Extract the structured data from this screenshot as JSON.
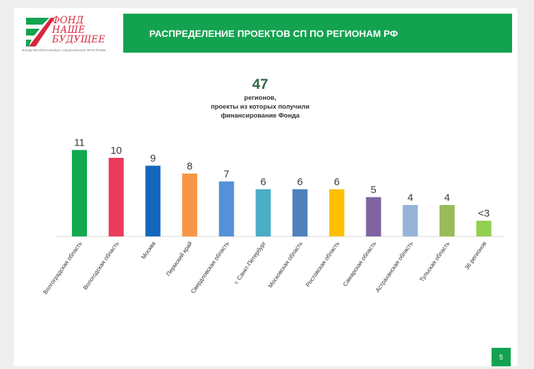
{
  "logo": {
    "lines": [
      "ФОНД",
      "НАШЕ",
      "БУДУЩЕЕ"
    ],
    "subtitle": "ФОНД РЕГИОНАЛЬНЫХ СОЦИАЛЬНЫХ ПРОГРАММ",
    "colors": {
      "green": "#13a350",
      "red": "#d7263d"
    }
  },
  "header": {
    "title": "РАСПРЕДЕЛЕНИЕ ПРОЕКТОВ СП ПО РЕГИОНАМ РФ"
  },
  "summary": {
    "number": "47",
    "text_lines": [
      "регионов,",
      "проекты из которых получили",
      "финансирование Фонда"
    ]
  },
  "chart_data": {
    "type": "bar",
    "categories": [
      "Волгоградская область",
      "Вологодская область",
      "Москва",
      "Пермский край",
      "Свердловская область",
      "г. Санкт-Петербург",
      "Московская область",
      "Ростовская область",
      "Самарская область",
      "Астраханская область",
      "Тульская область",
      "36 регионов"
    ],
    "values": [
      11,
      10,
      9,
      8,
      7,
      6,
      6,
      6,
      5,
      4,
      4,
      2
    ],
    "data_labels": [
      "11",
      "10",
      "9",
      "8",
      "7",
      "6",
      "6",
      "6",
      "5",
      "4",
      "4",
      "<3"
    ],
    "colors": [
      "#12a950",
      "#eb3a5b",
      "#1567bd",
      "#f79646",
      "#5590d9",
      "#4bacc6",
      "#4f81bd",
      "#ffc000",
      "#8064a2",
      "#95b3d7",
      "#9bbb59",
      "#92d050"
    ],
    "ylim": [
      0,
      12
    ],
    "grid": false,
    "legend": "none"
  },
  "footer": {
    "page_number": "5"
  }
}
